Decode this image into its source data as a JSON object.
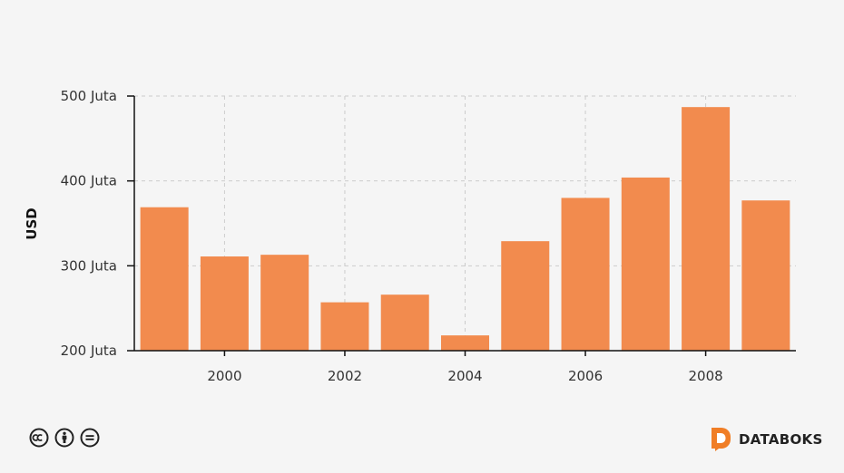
{
  "chart_data": {
    "type": "bar",
    "x": [
      1999,
      2000,
      2001,
      2002,
      2003,
      2004,
      2005,
      2006,
      2007,
      2008,
      2009
    ],
    "values": [
      369,
      311,
      313,
      257,
      266,
      218,
      329,
      380,
      404,
      487,
      377
    ],
    "xticks": [
      "2000",
      "2002",
      "2004",
      "2006",
      "2008"
    ],
    "xtick_values": [
      2000,
      2002,
      2004,
      2006,
      2008
    ],
    "yticks": [
      "200 Juta",
      "300 Juta",
      "400 Juta",
      "500 Juta"
    ],
    "ytick_values": [
      200,
      300,
      400,
      500
    ],
    "ylabel": "USD",
    "ylim": [
      200,
      500
    ],
    "grid": true,
    "color": "#f28b4e"
  },
  "footer": {
    "license_icons": [
      "cc-icon",
      "by-icon",
      "nd-icon"
    ],
    "brand": "DATABOKS",
    "brand_color": "#f07e26"
  }
}
